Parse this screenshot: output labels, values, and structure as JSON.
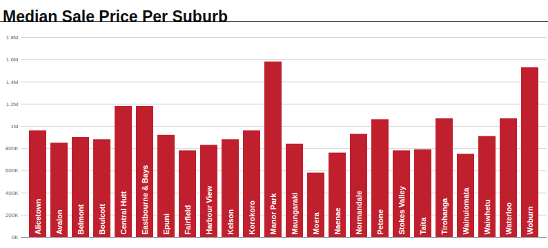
{
  "chart_data": {
    "type": "bar",
    "title": "Median Sale Price Per Suburb",
    "categories": [
      "Alicetown",
      "Avalon",
      "Belmont",
      "Boulcott",
      "Central Hutt",
      "Eastbourne & Bays",
      "Epuni",
      "Fairfield",
      "Harbour View",
      "Kelson",
      "Korokoro",
      "Manor Park",
      "Maungaraki",
      "Moera",
      "Naenae",
      "Normandale",
      "Petone",
      "Stokes Valley",
      "Taita",
      "Tirohanga",
      "Wainuiomata",
      "Waiwhetu",
      "Waterloo",
      "Woburn"
    ],
    "values": [
      960000,
      850000,
      900000,
      880000,
      1180000,
      1180000,
      920000,
      780000,
      830000,
      880000,
      960000,
      1580000,
      840000,
      580000,
      760000,
      930000,
      1060000,
      780000,
      790000,
      1070000,
      750000,
      910000,
      1070000,
      1530000
    ],
    "color": "#c0202e",
    "ylim": [
      0,
      1800000
    ],
    "yticks": [
      {
        "value": 0,
        "label": "0K"
      },
      {
        "value": 200000,
        "label": "200K"
      },
      {
        "value": 400000,
        "label": "400K"
      },
      {
        "value": 600000,
        "label": "600K"
      },
      {
        "value": 800000,
        "label": "800K"
      },
      {
        "value": 1000000,
        "label": "1M"
      },
      {
        "value": 1200000,
        "label": "1.2M"
      },
      {
        "value": 1400000,
        "label": "1.4M"
      },
      {
        "value": 1600000,
        "label": "1.6M"
      },
      {
        "value": 1800000,
        "label": "1.8M"
      }
    ],
    "grid": true
  }
}
